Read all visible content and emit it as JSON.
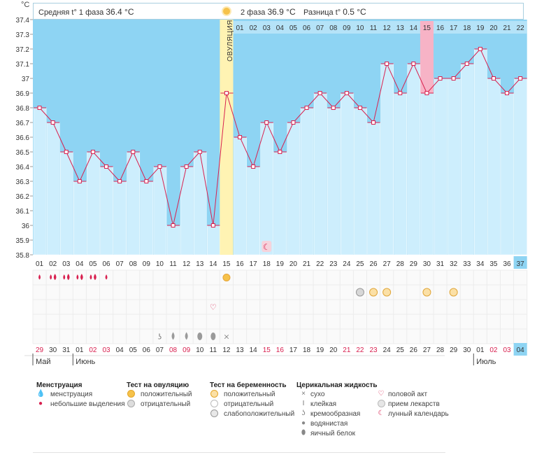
{
  "axis_unit": "°C",
  "info": {
    "phase1_label": "Средняя t° 1 фаза",
    "phase1_value": "36.4 °C",
    "phase2_label": "2 фаза",
    "phase2_value": "36.9 °C",
    "diff_label": "Разница t°",
    "diff_value": "0.5 °C"
  },
  "ovulation_label": "ОВУЛЯЦИЯ",
  "colors": {
    "phase_bg": "#8ed4f3",
    "bar_fill": "#cdeefd",
    "line": "#d8204f",
    "ovulation": "#fff3b3",
    "highlight": "#f7b3c6",
    "today": "#8ed4f3",
    "red_date": "#d8204f"
  },
  "chart_data": {
    "type": "line",
    "x": [
      "01",
      "02",
      "03",
      "04",
      "05",
      "06",
      "07",
      "08",
      "09",
      "10",
      "11",
      "12",
      "13",
      "14",
      "15",
      "16",
      "17",
      "18",
      "19",
      "20",
      "21",
      "22",
      "23",
      "24",
      "25",
      "26",
      "27",
      "28",
      "29",
      "30",
      "31",
      "32",
      "33",
      "34",
      "35",
      "36",
      "37"
    ],
    "values": [
      36.8,
      36.7,
      36.5,
      36.3,
      36.5,
      36.4,
      36.3,
      36.5,
      36.3,
      36.4,
      36.0,
      36.4,
      36.5,
      36.0,
      36.9,
      36.6,
      36.4,
      36.7,
      36.5,
      36.7,
      36.8,
      36.9,
      36.8,
      36.9,
      36.8,
      36.7,
      37.1,
      36.9,
      37.1,
      36.9,
      37.0,
      37.0,
      37.1,
      37.2,
      37.0,
      36.9,
      37.0
    ],
    "ylim": [
      35.8,
      37.4
    ],
    "yticks": [
      "35.8",
      "35.9",
      "36",
      "36.1",
      "36.2",
      "36.3",
      "36.4",
      "36.5",
      "36.6",
      "36.7",
      "36.8",
      "36.9",
      "37",
      "37.1",
      "37.2",
      "37.3",
      "37.4"
    ],
    "ovulation_day": "15",
    "phase2_days": [
      "01",
      "02",
      "03",
      "04",
      "05",
      "06",
      "07",
      "08",
      "09",
      "10",
      "11",
      "12",
      "13",
      "14",
      "15",
      "16",
      "17",
      "18",
      "19",
      "20",
      "21",
      "22"
    ],
    "highlight_phase2_day": "15",
    "today_cycle_day": "37",
    "calendar_dates": [
      "29",
      "30",
      "31",
      "01",
      "02",
      "03",
      "04",
      "05",
      "06",
      "07",
      "08",
      "09",
      "10",
      "11",
      "12",
      "13",
      "14",
      "15",
      "16",
      "17",
      "18",
      "19",
      "20",
      "21",
      "22",
      "23",
      "24",
      "25",
      "26",
      "27",
      "28",
      "29",
      "30",
      "01",
      "02",
      "03",
      "04"
    ],
    "red_calendar_dates_idx": [
      0,
      4,
      5,
      10,
      11,
      17,
      18,
      23,
      24,
      25,
      34,
      35,
      36
    ],
    "today_calendar_idx": 36,
    "months": [
      {
        "label": "Май",
        "idx": 0
      },
      {
        "label": "Июнь",
        "idx": 3
      },
      {
        "label": "Июль",
        "idx": 33
      }
    ]
  },
  "markers": {
    "menstruation": [
      {
        "day": 1,
        "count": 1
      },
      {
        "day": 2,
        "count": 2
      },
      {
        "day": 3,
        "count": 2
      },
      {
        "day": 4,
        "count": 2
      },
      {
        "day": 5,
        "count": 2
      },
      {
        "day": 6,
        "count": 1
      }
    ],
    "ovulation_test_positive": [
      15
    ],
    "pregnancy_tests": [
      {
        "day": 25,
        "kind": "weak"
      },
      {
        "day": 26,
        "kind": "positive"
      },
      {
        "day": 27,
        "kind": "positive"
      },
      {
        "day": 30,
        "kind": "positive"
      },
      {
        "day": 32,
        "kind": "positive"
      }
    ],
    "intercourse": [
      14
    ],
    "lunar": [
      18
    ],
    "cervical": [
      {
        "day": 10,
        "kind": "cream"
      },
      {
        "day": 11,
        "kind": "water"
      },
      {
        "day": 12,
        "kind": "water"
      },
      {
        "day": 13,
        "kind": "egg"
      },
      {
        "day": 14,
        "kind": "egg"
      },
      {
        "day": 15,
        "kind": "dry"
      }
    ]
  },
  "legend": {
    "menstruation": {
      "title": "Менструация",
      "items": [
        "менструация",
        "небольшие выделения"
      ]
    },
    "ovulation_test": {
      "title": "Тест на овуляцию",
      "items": [
        "положительный",
        "отрицательный"
      ]
    },
    "pregnancy_test": {
      "title": "Тест на беременность",
      "items": [
        "положительный",
        "отрицательный",
        "слабоположительный"
      ]
    },
    "cervical": {
      "title": "Церикальная жидкость",
      "items": [
        "сухо",
        "клейкая",
        "кремообразная",
        "водянистая",
        "яичный белок"
      ]
    },
    "other": {
      "items": [
        "половой акт",
        "прием лекарств",
        "лунный календарь"
      ]
    }
  }
}
